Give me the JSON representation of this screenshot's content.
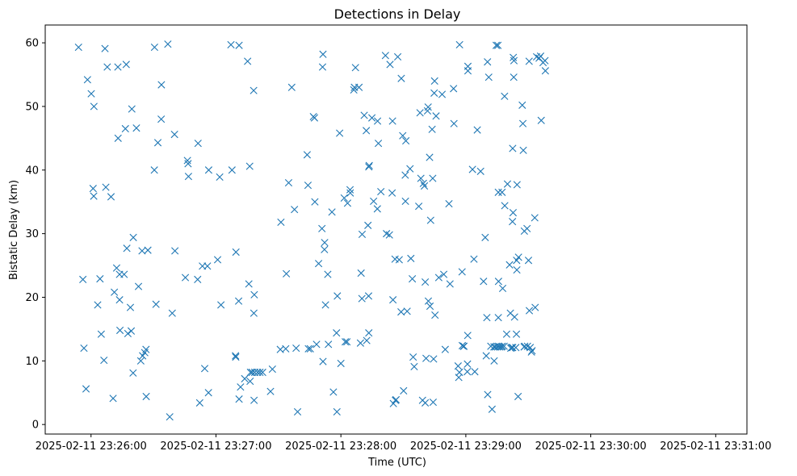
{
  "chart_data": {
    "type": "scatter",
    "title": "Detections in Delay",
    "xlabel": "Time (UTC)",
    "ylabel": "Bistatic Delay (km)",
    "marker": "x",
    "color": "#1f77b4",
    "grid": false,
    "x_unit": "seconds after 2025-02-11 23:26:00",
    "xlim": [
      -22,
      315
    ],
    "ylim": [
      -1.5,
      62.8
    ],
    "x_ticks": [
      {
        "value": 0,
        "label": "2025-02-11 23:26:00"
      },
      {
        "value": 60,
        "label": "2025-02-11 23:27:00"
      },
      {
        "value": 120,
        "label": "2025-02-11 23:28:00"
      },
      {
        "value": 180,
        "label": "2025-02-11 23:29:00"
      },
      {
        "value": 240,
        "label": "2025-02-11 23:30:00"
      },
      {
        "value": 300,
        "label": "2025-02-11 23:31:00"
      }
    ],
    "y_ticks": [
      {
        "value": 0,
        "label": "0"
      },
      {
        "value": 10,
        "label": "10"
      },
      {
        "value": 20,
        "label": "20"
      },
      {
        "value": 30,
        "label": "30"
      },
      {
        "value": 40,
        "label": "40"
      },
      {
        "value": 50,
        "label": "50"
      },
      {
        "value": 60,
        "label": "60"
      }
    ],
    "points": [
      [
        -6.0,
        59.3
      ],
      [
        -3.9,
        22.8
      ],
      [
        -3.4,
        12.0
      ],
      [
        -2.4,
        5.6
      ],
      [
        -1.7,
        54.2
      ],
      [
        0.1,
        52.0
      ],
      [
        1.0,
        37.1
      ],
      [
        1.3,
        35.9
      ],
      [
        1.4,
        50.0
      ],
      [
        3.2,
        18.8
      ],
      [
        4.3,
        22.9
      ],
      [
        4.9,
        14.2
      ],
      [
        6.2,
        10.1
      ],
      [
        6.7,
        59.1
      ],
      [
        7.1,
        37.3
      ],
      [
        7.8,
        56.2
      ],
      [
        9.6,
        35.8
      ],
      [
        10.6,
        4.1
      ],
      [
        11.2,
        20.8
      ],
      [
        12.3,
        24.6
      ],
      [
        12.9,
        56.2
      ],
      [
        13.0,
        45.0
      ],
      [
        13.7,
        23.6
      ],
      [
        13.7,
        19.6
      ],
      [
        13.9,
        14.8
      ],
      [
        15.9,
        23.6
      ],
      [
        16.5,
        46.5
      ],
      [
        16.9,
        56.6
      ],
      [
        17.2,
        27.7
      ],
      [
        17.7,
        14.3
      ],
      [
        18.9,
        18.4
      ],
      [
        19.3,
        14.7
      ],
      [
        19.6,
        49.6
      ],
      [
        20.2,
        8.1
      ],
      [
        20.3,
        29.4
      ],
      [
        21.8,
        46.6
      ],
      [
        22.8,
        21.7
      ],
      [
        23.9,
        10.0
      ],
      [
        24.5,
        27.3
      ],
      [
        24.8,
        10.8
      ],
      [
        25.8,
        11.3
      ],
      [
        26.4,
        11.8
      ],
      [
        26.5,
        4.4
      ],
      [
        27.3,
        27.4
      ],
      [
        30.4,
        40.0
      ],
      [
        30.5,
        59.3
      ],
      [
        31.2,
        18.9
      ],
      [
        32.1,
        44.3
      ],
      [
        33.7,
        48.0
      ],
      [
        33.8,
        53.4
      ],
      [
        36.9,
        59.8
      ],
      [
        37.8,
        1.2
      ],
      [
        39.0,
        17.5
      ],
      [
        40.1,
        45.6
      ],
      [
        40.3,
        27.3
      ],
      [
        45.3,
        23.1
      ],
      [
        46.3,
        41.5
      ],
      [
        46.6,
        41.0
      ],
      [
        46.8,
        39.0
      ],
      [
        51.4,
        44.2
      ],
      [
        51.2,
        22.8
      ],
      [
        52.2,
        3.4
      ],
      [
        53.5,
        24.9
      ],
      [
        54.6,
        8.8
      ],
      [
        55.9,
        24.9
      ],
      [
        56.4,
        5.0
      ],
      [
        56.5,
        40.0
      ],
      [
        60.8,
        25.9
      ],
      [
        61.8,
        38.9
      ],
      [
        62.4,
        18.8
      ],
      [
        67.2,
        59.7
      ],
      [
        67.7,
        40.0
      ],
      [
        69.4,
        10.8
      ],
      [
        69.5,
        10.6
      ],
      [
        69.6,
        27.1
      ],
      [
        71.1,
        59.6
      ],
      [
        70.9,
        19.4
      ],
      [
        71.1,
        4.0
      ],
      [
        71.8,
        5.9
      ],
      [
        73.8,
        7.2
      ],
      [
        75.2,
        57.1
      ],
      [
        75.8,
        22.1
      ],
      [
        76.2,
        40.6
      ],
      [
        76.4,
        6.8
      ],
      [
        76.6,
        8.2
      ],
      [
        77.4,
        8.2
      ],
      [
        78.1,
        52.5
      ],
      [
        78.4,
        20.4
      ],
      [
        78.2,
        17.5
      ],
      [
        78.3,
        3.8
      ],
      [
        78.6,
        8.2
      ],
      [
        80.0,
        8.2
      ],
      [
        81.1,
        8.2
      ],
      [
        82.4,
        8.2
      ],
      [
        86.2,
        5.2
      ],
      [
        87.1,
        8.7
      ],
      [
        90.9,
        11.8
      ],
      [
        91.2,
        31.8
      ],
      [
        93.5,
        11.9
      ],
      [
        93.8,
        23.7
      ],
      [
        94.9,
        38.0
      ],
      [
        96.4,
        53.0
      ],
      [
        97.7,
        33.8
      ],
      [
        98.5,
        12.0
      ],
      [
        99.2,
        2.0
      ],
      [
        103.8,
        42.4
      ],
      [
        104.2,
        37.6
      ],
      [
        104.4,
        11.9
      ],
      [
        105.3,
        11.9
      ],
      [
        106.8,
        48.4
      ],
      [
        107.3,
        48.2
      ],
      [
        107.5,
        35.0
      ],
      [
        108.3,
        12.6
      ],
      [
        109.3,
        25.3
      ],
      [
        110.9,
        30.8
      ],
      [
        111.2,
        56.2
      ],
      [
        111.4,
        58.2
      ],
      [
        111.4,
        9.9
      ],
      [
        112.1,
        27.5
      ],
      [
        112.2,
        28.6
      ],
      [
        112.6,
        18.8
      ],
      [
        113.7,
        23.6
      ],
      [
        114.0,
        12.6
      ],
      [
        115.7,
        33.4
      ],
      [
        116.4,
        5.1
      ],
      [
        117.9,
        14.4
      ],
      [
        118.1,
        2.0
      ],
      [
        118.3,
        20.2
      ],
      [
        119.4,
        45.8
      ],
      [
        120.0,
        9.6
      ],
      [
        121.6,
        35.6
      ],
      [
        122.1,
        13.0
      ],
      [
        122.9,
        13.0
      ],
      [
        123.2,
        34.8
      ],
      [
        124.4,
        36.9
      ],
      [
        124.5,
        36.4
      ],
      [
        126.2,
        52.6
      ],
      [
        126.5,
        53.0
      ],
      [
        127.0,
        56.1
      ],
      [
        128.7,
        53.0
      ],
      [
        129.4,
        12.8
      ],
      [
        129.7,
        23.8
      ],
      [
        130.2,
        29.9
      ],
      [
        130.1,
        19.8
      ],
      [
        131.2,
        48.6
      ],
      [
        132.2,
        46.2
      ],
      [
        132.4,
        13.2
      ],
      [
        133.0,
        31.3
      ],
      [
        133.4,
        40.5
      ],
      [
        133.3,
        20.2
      ],
      [
        133.4,
        14.4
      ],
      [
        133.6,
        40.7
      ],
      [
        134.9,
        48.2
      ],
      [
        135.7,
        35.1
      ],
      [
        137.5,
        33.9
      ],
      [
        137.6,
        47.7
      ],
      [
        138.0,
        44.2
      ],
      [
        139.2,
        36.6
      ],
      [
        141.4,
        58.0
      ],
      [
        141.9,
        30.0
      ],
      [
        143.6,
        56.6
      ],
      [
        143.3,
        29.8
      ],
      [
        144.6,
        36.4
      ],
      [
        144.8,
        47.7
      ],
      [
        145.0,
        19.6
      ],
      [
        145.2,
        3.3
      ],
      [
        146.0,
        26.0
      ],
      [
        146.2,
        3.8
      ],
      [
        146.5,
        3.9
      ],
      [
        147.3,
        57.8
      ],
      [
        148.0,
        25.9
      ],
      [
        148.9,
        17.7
      ],
      [
        149.0,
        54.4
      ],
      [
        149.7,
        45.4
      ],
      [
        150.1,
        5.3
      ],
      [
        150.9,
        39.2
      ],
      [
        151.0,
        35.1
      ],
      [
        151.2,
        44.6
      ],
      [
        151.8,
        17.8
      ],
      [
        153.2,
        40.2
      ],
      [
        153.6,
        26.1
      ],
      [
        154.3,
        22.9
      ],
      [
        154.7,
        10.6
      ],
      [
        155.2,
        9.1
      ],
      [
        157.4,
        34.3
      ],
      [
        158.0,
        49.0
      ],
      [
        158.4,
        38.7
      ],
      [
        159.2,
        3.8
      ],
      [
        159.6,
        37.9
      ],
      [
        160.1,
        37.5
      ],
      [
        160.5,
        3.4
      ],
      [
        160.5,
        22.4
      ],
      [
        160.9,
        10.4
      ],
      [
        161.6,
        49.3
      ],
      [
        161.9,
        49.9
      ],
      [
        162.0,
        19.4
      ],
      [
        162.6,
        42.0
      ],
      [
        162.8,
        18.6
      ],
      [
        163.1,
        32.1
      ],
      [
        163.8,
        46.4
      ],
      [
        164.1,
        38.7
      ],
      [
        164.3,
        3.5
      ],
      [
        164.5,
        10.3
      ],
      [
        164.8,
        52.1
      ],
      [
        165.0,
        54.0
      ],
      [
        165.2,
        17.2
      ],
      [
        165.7,
        48.5
      ],
      [
        167.0,
        23.1
      ],
      [
        168.6,
        51.9
      ],
      [
        169.4,
        23.6
      ],
      [
        170.1,
        11.8
      ],
      [
        171.9,
        34.7
      ],
      [
        172.4,
        22.1
      ],
      [
        174.1,
        52.8
      ],
      [
        174.3,
        47.3
      ],
      [
        176.3,
        9.2
      ],
      [
        176.6,
        7.4
      ],
      [
        176.9,
        8.2
      ],
      [
        177.0,
        59.7
      ],
      [
        178.2,
        24.0
      ],
      [
        178.3,
        12.4
      ],
      [
        178.9,
        12.3
      ],
      [
        179.1,
        12.3
      ],
      [
        180.9,
        14.0
      ],
      [
        180.8,
        9.5
      ],
      [
        180.7,
        8.3
      ],
      [
        181.0,
        56.3
      ],
      [
        181.0,
        55.6
      ],
      [
        183.2,
        40.1
      ],
      [
        183.9,
        26.0
      ],
      [
        184.3,
        8.3
      ],
      [
        185.5,
        46.3
      ],
      [
        187.1,
        39.8
      ],
      [
        188.5,
        22.5
      ],
      [
        189.3,
        29.4
      ],
      [
        189.8,
        10.8
      ],
      [
        190.1,
        16.8
      ],
      [
        190.4,
        57.0
      ],
      [
        190.5,
        4.7
      ],
      [
        191.0,
        54.6
      ],
      [
        192.0,
        12.3
      ],
      [
        192.6,
        2.4
      ],
      [
        193.5,
        12.2
      ],
      [
        193.6,
        10.0
      ],
      [
        194.2,
        12.2
      ],
      [
        194.6,
        59.6
      ],
      [
        195.2,
        12.2
      ],
      [
        195.4,
        59.6
      ],
      [
        195.6,
        36.5
      ],
      [
        195.6,
        16.8
      ],
      [
        195.7,
        22.5
      ],
      [
        195.7,
        12.3
      ],
      [
        196.3,
        12.2
      ],
      [
        197.1,
        12.2
      ],
      [
        197.4,
        36.5
      ],
      [
        197.5,
        12.3
      ],
      [
        197.7,
        21.4
      ],
      [
        198.4,
        12.3
      ],
      [
        198.6,
        51.6
      ],
      [
        198.7,
        34.4
      ],
      [
        199.6,
        14.2
      ],
      [
        200.0,
        37.8
      ],
      [
        201.0,
        25.1
      ],
      [
        201.4,
        17.5
      ],
      [
        201.6,
        12.0
      ],
      [
        202.0,
        12.1
      ],
      [
        202.4,
        31.9
      ],
      [
        202.5,
        43.4
      ],
      [
        202.5,
        12.1
      ],
      [
        202.7,
        33.3
      ],
      [
        202.8,
        57.7
      ],
      [
        203.0,
        54.6
      ],
      [
        203.1,
        57.2
      ],
      [
        203.4,
        16.9
      ],
      [
        204.0,
        12.1
      ],
      [
        204.3,
        14.2
      ],
      [
        204.4,
        25.8
      ],
      [
        204.5,
        24.3
      ],
      [
        204.6,
        37.7
      ],
      [
        205.1,
        4.4
      ],
      [
        205.3,
        26.3
      ],
      [
        207.1,
        50.2
      ],
      [
        207.4,
        47.3
      ],
      [
        207.6,
        43.1
      ],
      [
        208.0,
        12.2
      ],
      [
        208.1,
        30.4
      ],
      [
        208.3,
        12.3
      ],
      [
        209.4,
        30.8
      ],
      [
        209.6,
        12.3
      ],
      [
        210.1,
        25.8
      ],
      [
        210.4,
        57.1
      ],
      [
        210.5,
        17.9
      ],
      [
        210.9,
        12.1
      ],
      [
        211.5,
        11.4
      ],
      [
        211.8,
        11.6
      ],
      [
        213.1,
        32.5
      ],
      [
        213.3,
        18.4
      ],
      [
        214.0,
        57.8
      ],
      [
        215.2,
        57.6
      ],
      [
        215.9,
        57.9
      ],
      [
        216.2,
        47.8
      ],
      [
        217.1,
        56.9
      ],
      [
        218.0,
        57.2
      ],
      [
        218.2,
        55.6
      ]
    ]
  }
}
